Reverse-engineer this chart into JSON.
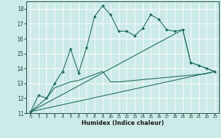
{
  "xlabel": "Humidex (Indice chaleur)",
  "background_color": "#cceae7",
  "line_color": "#1a6b5a",
  "xlim": [
    -0.5,
    23.5
  ],
  "ylim": [
    11,
    18.5
  ],
  "yticks": [
    11,
    12,
    13,
    14,
    15,
    16,
    17,
    18
  ],
  "xticks": [
    0,
    1,
    2,
    3,
    4,
    5,
    6,
    7,
    8,
    9,
    10,
    11,
    12,
    13,
    14,
    15,
    16,
    17,
    18,
    19,
    20,
    21,
    22,
    23
  ],
  "series1_x": [
    0,
    1,
    2,
    3,
    4,
    5,
    6,
    7,
    8,
    9,
    10,
    11,
    12,
    13,
    14,
    15,
    16,
    17,
    18,
    19,
    20,
    21,
    22,
    23
  ],
  "series1_y": [
    11.1,
    12.2,
    12.0,
    13.0,
    13.8,
    15.3,
    13.7,
    15.4,
    17.5,
    18.2,
    17.6,
    16.5,
    16.5,
    16.2,
    16.7,
    17.6,
    17.3,
    16.6,
    16.5,
    16.6,
    14.4,
    14.2,
    14.0,
    13.8
  ],
  "series2_x": [
    0,
    2,
    3,
    4,
    5,
    6,
    7,
    8,
    9,
    10,
    11,
    12,
    13,
    14,
    15,
    16,
    17,
    18,
    19,
    20,
    21,
    22,
    23
  ],
  "series2_y": [
    11.1,
    12.0,
    12.7,
    12.9,
    13.1,
    13.2,
    13.4,
    13.6,
    13.8,
    13.1,
    13.1,
    13.15,
    13.2,
    13.25,
    13.3,
    13.35,
    13.4,
    13.45,
    13.5,
    13.55,
    13.6,
    13.65,
    13.8
  ],
  "series3_x": [
    0,
    23
  ],
  "series3_y": [
    11.1,
    13.8
  ],
  "series4_x": [
    0,
    19,
    20,
    21,
    22,
    23
  ],
  "series4_y": [
    11.1,
    16.6,
    14.4,
    14.2,
    14.0,
    13.8
  ]
}
